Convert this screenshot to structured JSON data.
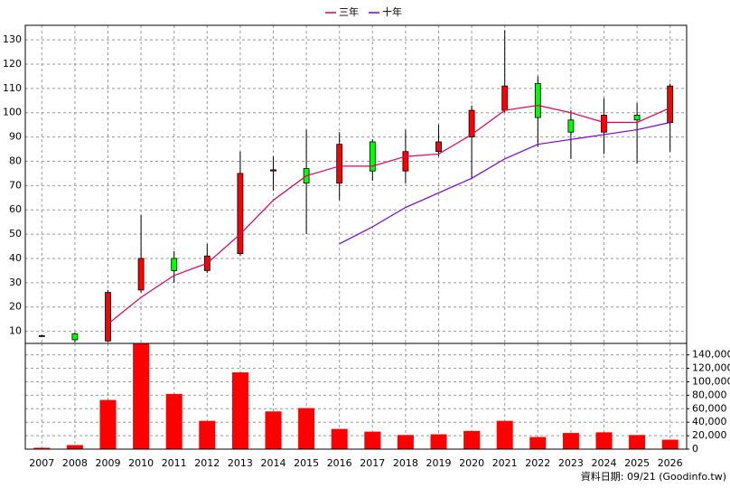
{
  "chart_data": [
    {
      "type": "candlestick",
      "categories": [
        "2007",
        "2008",
        "2009",
        "2010",
        "2011",
        "2012",
        "2013",
        "2014",
        "2015",
        "2016",
        "2017",
        "2018",
        "2019",
        "2020",
        "2021",
        "2022",
        "2023",
        "2024",
        "2025",
        "2026"
      ],
      "open": [
        8,
        9,
        6,
        27,
        40,
        35,
        42,
        76,
        77,
        71,
        88,
        76,
        84,
        90,
        101,
        112,
        97,
        92,
        99,
        96
      ],
      "high": [
        8.5,
        9.5,
        27,
        58,
        43,
        46,
        84,
        82,
        93,
        92,
        89,
        93,
        95,
        103,
        134,
        115,
        101,
        106,
        104,
        112
      ],
      "low": [
        7.8,
        5.5,
        5.5,
        26,
        30,
        34,
        41,
        68,
        50,
        64,
        72,
        71,
        82,
        73,
        100,
        86,
        81,
        83,
        79,
        84
      ],
      "close": [
        8.2,
        6.5,
        26,
        40,
        35,
        41,
        75,
        76.5,
        71,
        87,
        76,
        84,
        88,
        101,
        111,
        98,
        92,
        99,
        97,
        111
      ],
      "up_color": "#ff0000",
      "down_color": "#00ff00",
      "series": [
        {
          "name": "三年",
          "color": "#e0005a",
          "values": [
            null,
            null,
            13,
            24,
            33,
            38,
            50,
            64,
            74,
            78,
            78,
            82,
            83,
            91,
            101,
            103,
            100,
            96,
            96,
            102
          ]
        },
        {
          "name": "十年",
          "color": "#7a00d0",
          "values": [
            null,
            null,
            null,
            null,
            null,
            null,
            null,
            null,
            null,
            46,
            53,
            61,
            67,
            73,
            81,
            87,
            89,
            91,
            93,
            96
          ]
        }
      ],
      "ylim": [
        5,
        136
      ],
      "yticks": [
        10,
        20,
        30,
        40,
        50,
        60,
        70,
        80,
        90,
        100,
        110,
        120,
        130
      ],
      "grid": true
    },
    {
      "type": "bar",
      "values": [
        2000,
        6000,
        73000,
        157000,
        82000,
        42000,
        114000,
        56000,
        61000,
        30000,
        26000,
        21000,
        22000,
        27000,
        42000,
        18000,
        24000,
        25000,
        21000,
        14000
      ],
      "color": "#ff0000",
      "ylim": [
        0,
        157000
      ],
      "yticks": [
        0,
        {
          "value": 20000,
          "label": "20,000"
        },
        {
          "value": 40000,
          "label": "40,000"
        },
        {
          "value": 60000,
          "label": "60,000"
        },
        {
          "value": 80000,
          "label": "80,000"
        },
        {
          "value": 100000,
          "label": "100,000"
        },
        {
          "value": 120000,
          "label": "120,000"
        },
        {
          "value": 140000,
          "label": "140,000"
        }
      ],
      "grid": true
    }
  ],
  "source": "資料日期: 09/21  (Goodinfo.tw)"
}
